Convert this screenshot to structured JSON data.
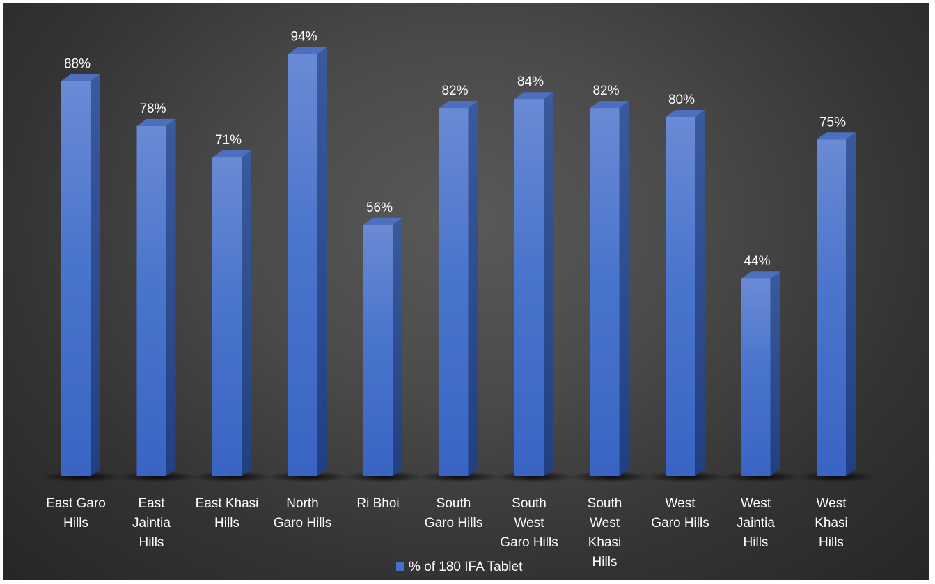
{
  "chart_data": {
    "type": "bar",
    "categories": [
      [
        "East Garo",
        "Hills"
      ],
      [
        "East",
        "Jaintia",
        "Hills"
      ],
      [
        "East Khasi",
        "Hills"
      ],
      [
        "North",
        "Garo Hills"
      ],
      [
        "Ri Bhoi"
      ],
      [
        "South",
        "Garo Hills"
      ],
      [
        "South",
        "West",
        "Garo Hills"
      ],
      [
        "South",
        "West",
        "Khasi",
        "Hills"
      ],
      [
        "West",
        "Garo Hills"
      ],
      [
        "West",
        "Jaintia",
        "Hills"
      ],
      [
        "West",
        "Khasi",
        "Hills"
      ]
    ],
    "series": [
      {
        "name": "% of 180 IFA Tablet",
        "values": [
          88,
          78,
          71,
          94,
          56,
          82,
          84,
          82,
          80,
          44,
          75
        ],
        "labels": [
          "88%",
          "78%",
          "71%",
          "94%",
          "56%",
          "82%",
          "84%",
          "82%",
          "80%",
          "44%",
          "75%"
        ],
        "color": "#4472c4"
      }
    ],
    "ylim": [
      0,
      100
    ],
    "grid": false,
    "legend": "bottom",
    "style": "3d-column",
    "background": "#404040"
  }
}
